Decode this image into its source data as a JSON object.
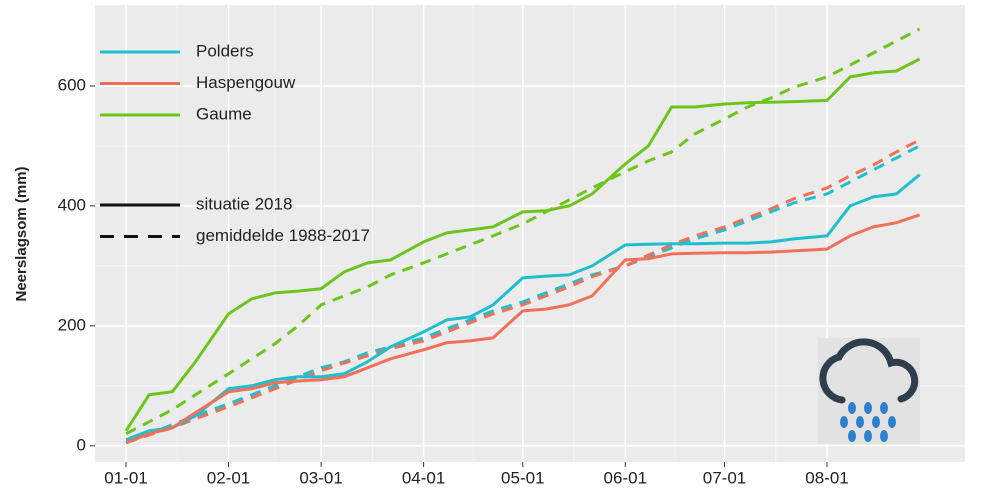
{
  "chart_data": {
    "type": "line",
    "y_label": "Neerslagsom (mm)",
    "x": [
      "01-01",
      "01-08",
      "01-15",
      "01-22",
      "02-01",
      "02-08",
      "02-15",
      "02-22",
      "03-01",
      "03-08",
      "03-15",
      "03-22",
      "04-01",
      "04-08",
      "04-15",
      "04-22",
      "05-01",
      "05-08",
      "05-15",
      "05-22",
      "06-01",
      "06-08",
      "06-15",
      "06-22",
      "07-01",
      "07-08",
      "07-15",
      "07-22",
      "08-01",
      "08-08",
      "08-15",
      "08-22",
      "08-29"
    ],
    "xticks": [
      "01-01",
      "02-01",
      "03-01",
      "04-01",
      "05-01",
      "06-01",
      "07-01",
      "08-01"
    ],
    "ylim": [
      -27,
      735
    ],
    "yticks": [
      0,
      200,
      400,
      600
    ],
    "grid": true,
    "legend": "top-left",
    "linetypes": [
      "situatie 2018",
      "gemiddelde 1988-2017"
    ],
    "series": [
      {
        "name": "Polders",
        "color": "#1fbfcf",
        "values": [
          10,
          25,
          30,
          50,
          95,
          100,
          110,
          115,
          115,
          120,
          140,
          165,
          190,
          210,
          215,
          235,
          280,
          283,
          285,
          300,
          335,
          336,
          337,
          337,
          338,
          338,
          340,
          345,
          350,
          400,
          415,
          420,
          452
        ],
        "average_values": [
          5,
          20,
          35,
          50,
          70,
          85,
          100,
          115,
          130,
          140,
          155,
          165,
          180,
          195,
          210,
          225,
          240,
          255,
          270,
          285,
          300,
          315,
          330,
          345,
          360,
          375,
          390,
          405,
          420,
          440,
          460,
          480,
          500
        ]
      },
      {
        "name": "Haspengouw",
        "color": "#f07058",
        "values": [
          5,
          20,
          30,
          55,
          90,
          95,
          105,
          108,
          110,
          115,
          130,
          145,
          160,
          172,
          175,
          180,
          225,
          228,
          235,
          250,
          310,
          312,
          320,
          321,
          322,
          322,
          323,
          325,
          328,
          350,
          365,
          372,
          385
        ],
        "average_values": [
          5,
          18,
          30,
          45,
          65,
          80,
          95,
          110,
          125,
          138,
          150,
          162,
          175,
          190,
          205,
          220,
          235,
          250,
          265,
          282,
          300,
          318,
          335,
          350,
          365,
          380,
          395,
          412,
          430,
          450,
          468,
          490,
          510
        ]
      },
      {
        "name": "Gaume",
        "color": "#6cc51c",
        "values": [
          25,
          85,
          90,
          140,
          220,
          245,
          255,
          258,
          262,
          290,
          305,
          310,
          340,
          355,
          360,
          365,
          390,
          392,
          400,
          420,
          470,
          500,
          565,
          565,
          570,
          572,
          573,
          574,
          576,
          615,
          622,
          625,
          645
        ],
        "average_values": [
          20,
          40,
          60,
          85,
          120,
          145,
          170,
          200,
          235,
          250,
          265,
          285,
          305,
          320,
          335,
          350,
          370,
          390,
          410,
          430,
          457,
          475,
          490,
          520,
          545,
          565,
          580,
          598,
          615,
          635,
          655,
          675,
          695
        ]
      }
    ]
  }
}
